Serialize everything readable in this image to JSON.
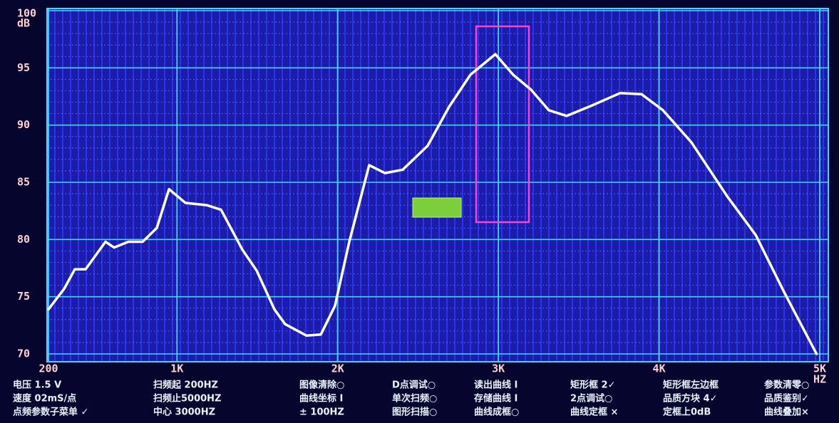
{
  "chart_data": {
    "type": "line",
    "y_label": "dB",
    "x_label": "HZ",
    "x": [
      200,
      298,
      364,
      431,
      555,
      608,
      697,
      786,
      874,
      950,
      1052,
      1185,
      1274,
      1407,
      1495,
      1606,
      1673,
      1806,
      1895,
      1983,
      2072,
      2196,
      2294,
      2405,
      2560,
      2693,
      2826,
      2981,
      3092,
      3203,
      3314,
      3425,
      3580,
      3758,
      3891,
      4024,
      4201,
      4423,
      4601,
      4778,
      4980
    ],
    "values": [
      73.9,
      75.7,
      77.4,
      77.4,
      79.8,
      79.3,
      79.8,
      79.8,
      81.0,
      84.4,
      83.2,
      83.0,
      82.6,
      79.1,
      77.3,
      73.9,
      72.6,
      71.6,
      71.7,
      74.2,
      79.8,
      86.5,
      85.8,
      86.1,
      88.2,
      91.6,
      94.4,
      96.2,
      94.4,
      93.1,
      91.3,
      90.8,
      91.7,
      92.8,
      92.7,
      91.3,
      88.5,
      83.8,
      80.4,
      75.4,
      70.0
    ],
    "color": "#ffffff",
    "xlim": [
      200,
      5000
    ],
    "ylim": [
      70,
      100
    ],
    "xticks": [
      200,
      {
        "value": 1000,
        "label": "1K"
      },
      {
        "value": 2000,
        "label": "2K"
      },
      {
        "value": 3000,
        "label": "3K"
      },
      {
        "value": 4000,
        "label": "4K"
      },
      {
        "value": 5000,
        "label": "5K"
      }
    ],
    "yticks": [
      70,
      75,
      80,
      85,
      90,
      95,
      100
    ],
    "grid": true
  },
  "status_panel": [
    [
      "电压  1.5  V",
      "速度  02mS/点",
      "点频参数子菜单  ✓"
    ],
    [
      "扫频起  200HZ",
      "扫频止5000HZ",
      "中心  3000HZ"
    ],
    [
      "图像清除○",
      "曲线坐标 I",
      "±  100HZ"
    ],
    [
      "D点调试○",
      "单次扫频○",
      "图形扫描○"
    ],
    [
      "读出曲线 I",
      "存储曲线 I",
      "曲线成框○"
    ],
    [
      "矩形框 2✓",
      "2点调试○",
      "曲线定框 ×"
    ],
    [
      "矩形框左边框",
      "品质方块 4✓",
      "定框上0dB"
    ],
    [
      "参数清零○",
      "品质鉴别✓",
      "曲线叠加×"
    ]
  ]
}
